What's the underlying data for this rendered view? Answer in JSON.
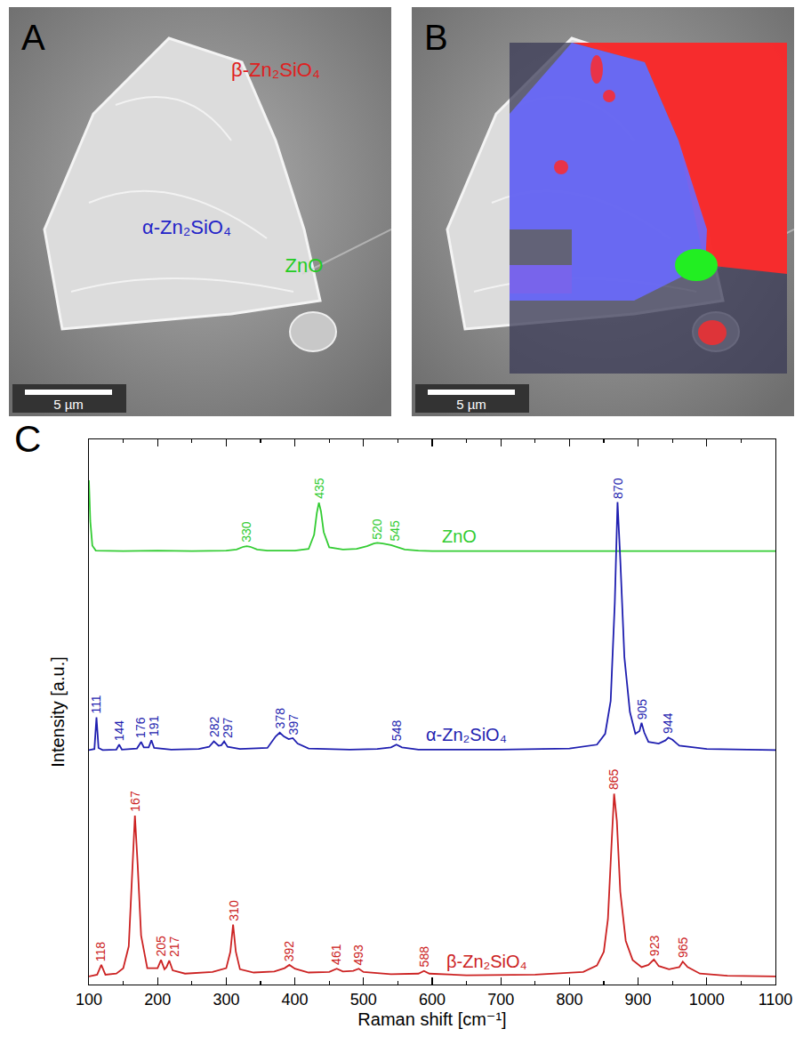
{
  "images": [
    {
      "panel": "A",
      "scale_bar": "5 µm",
      "labels": [
        {
          "text": "β-Zn₂SiO₄",
          "color": "#e02020"
        },
        {
          "text": "α-Zn₂SiO₄",
          "color": "#2323c8"
        },
        {
          "text": "ZnO",
          "color": "#22cc22"
        }
      ]
    },
    {
      "panel": "B",
      "scale_bar": "5 µm",
      "colors": [
        "#ff2a2a",
        "#6a6aff",
        "#22ee22"
      ]
    }
  ],
  "chart_panel": "C",
  "chart_data": {
    "type": "line",
    "x_label": "Raman shift [cm⁻¹]",
    "y_label": "Intensity [a.u.]",
    "xlim": [
      100,
      1100
    ],
    "xticks": [
      100,
      200,
      300,
      400,
      500,
      600,
      700,
      800,
      900,
      1000,
      1100
    ],
    "ylim": [
      0,
      100
    ],
    "tick_labels": "x",
    "grid": false,
    "series": [
      {
        "name": "ZnO",
        "color": "#33cc33",
        "x": [
          100,
          102,
          105,
          110,
          150,
          200,
          250,
          300,
          315,
          325,
          330,
          335,
          345,
          360,
          400,
          420,
          428,
          432,
          435,
          438,
          442,
          450,
          470,
          490,
          505,
          515,
          520,
          528,
          540,
          548,
          560,
          580,
          600,
          700,
          800,
          900,
          1000,
          1100
        ],
        "values": [
          92.5,
          85,
          80.5,
          79.6,
          79.5,
          79.6,
          79.5,
          79.6,
          79.8,
          80.3,
          80.4,
          80.3,
          79.8,
          79.6,
          79.6,
          79.9,
          82.5,
          86.5,
          88.4,
          86.8,
          83,
          80.2,
          79.8,
          79.9,
          80.4,
          80.9,
          81.0,
          80.9,
          80.6,
          80.3,
          79.8,
          79.6,
          79.5,
          79.5,
          79.5,
          79.5,
          79.5,
          79.5
        ],
        "peaks": [
          330,
          435,
          520,
          545
        ]
      },
      {
        "name": "α-Zn₂SiO₄",
        "color": "#1f1fb0",
        "x": [
          100,
          108,
          111,
          114,
          120,
          140,
          144,
          148,
          170,
          176,
          180,
          187,
          191,
          195,
          220,
          260,
          275,
          282,
          289,
          293,
          297,
          302,
          320,
          360,
          372,
          378,
          384,
          391,
          397,
          404,
          420,
          480,
          520,
          540,
          548,
          556,
          580,
          700,
          800,
          840,
          852,
          860,
          866,
          870,
          874,
          880,
          888,
          896,
          902,
          905,
          909,
          915,
          930,
          940,
          944,
          950,
          960,
          1000,
          1100
        ],
        "values": [
          43,
          43.2,
          49,
          43.4,
          43,
          43.1,
          44,
          43.1,
          43.3,
          44.5,
          43.5,
          43.5,
          44.8,
          43.4,
          43.1,
          43.2,
          43.6,
          44.6,
          43.8,
          43.9,
          44.6,
          43.6,
          43.2,
          43.4,
          45.5,
          46.2,
          45.5,
          45,
          45.2,
          44.2,
          43.3,
          43.1,
          43.2,
          43.5,
          44,
          43.5,
          43.1,
          43.1,
          43.3,
          44,
          46,
          52,
          70,
          88.5,
          78,
          60,
          50,
          46,
          46.5,
          48,
          46.2,
          44.5,
          44.2,
          44.8,
          45.3,
          44.9,
          43.8,
          43.2,
          43
        ],
        "peaks": [
          111,
          144,
          176,
          191,
          297,
          282,
          378,
          397,
          548,
          870,
          905,
          944
        ]
      },
      {
        "name": "β-Zn₂SiO₄",
        "color": "#cc2222",
        "x": [
          100,
          112,
          118,
          124,
          140,
          150,
          158,
          163,
          167,
          171,
          176,
          185,
          200,
          205,
          210,
          213,
          217,
          222,
          240,
          280,
          300,
          306,
          310,
          314,
          320,
          340,
          370,
          385,
          392,
          400,
          420,
          450,
          461,
          470,
          485,
          493,
          500,
          540,
          580,
          588,
          596,
          650,
          750,
          820,
          840,
          850,
          856,
          861,
          865,
          869,
          874,
          882,
          892,
          905,
          915,
          923,
          930,
          945,
          960,
          965,
          972,
          990,
          1030,
          1100
        ],
        "values": [
          1.5,
          1.8,
          3.6,
          1.8,
          2,
          3,
          7,
          20,
          31,
          22,
          9,
          3,
          3,
          4.5,
          2.8,
          3.2,
          4.4,
          2.6,
          2,
          2.3,
          3,
          6,
          11,
          6,
          2.8,
          2.2,
          2.4,
          3,
          3.6,
          2.9,
          2.2,
          2.3,
          2.9,
          2.4,
          2.5,
          2.9,
          2.3,
          1.9,
          2,
          2.5,
          2,
          1.7,
          1.8,
          2.3,
          3.5,
          6,
          12,
          25,
          35,
          30,
          17,
          8,
          4.5,
          3.2,
          3.6,
          4.6,
          3.4,
          2.8,
          3.2,
          4.2,
          3.2,
          2,
          1.6,
          1.5
        ],
        "peaks": [
          118,
          167,
          205,
          217,
          310,
          392,
          461,
          493,
          588,
          865,
          923,
          965
        ]
      }
    ]
  }
}
